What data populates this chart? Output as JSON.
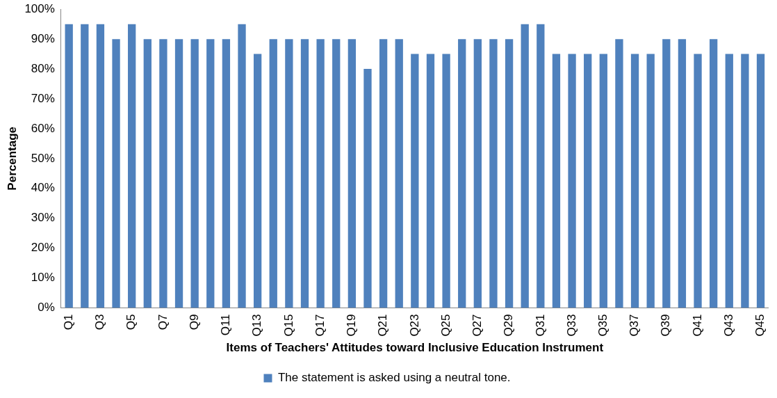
{
  "chart_data": {
    "type": "bar",
    "xlabel": "Items of Teachers' Attitudes toward Inclusive Education Instrument",
    "ylabel": "Percentage",
    "categories": [
      "Q1",
      null,
      "Q3",
      null,
      "Q5",
      null,
      "Q7",
      null,
      "Q9",
      null,
      "Q11",
      null,
      "Q13",
      null,
      "Q15",
      null,
      "Q17",
      null,
      "Q19",
      null,
      "Q21",
      null,
      "Q23",
      null,
      "Q25",
      null,
      "Q27",
      null,
      "Q29",
      null,
      "Q31",
      null,
      "Q33",
      null,
      "Q35",
      null,
      "Q37",
      null,
      "Q39",
      null,
      "Q41",
      null,
      "Q43",
      null,
      "Q45"
    ],
    "series": [
      {
        "name": "The statement is asked using a neutral tone.",
        "color": "#4f81bd",
        "values": [
          95,
          95,
          95,
          90,
          95,
          90,
          90,
          90,
          90,
          90,
          90,
          95,
          85,
          90,
          90,
          90,
          90,
          90,
          90,
          80,
          90,
          90,
          85,
          85,
          85,
          90,
          90,
          90,
          90,
          95,
          95,
          85,
          85,
          85,
          85,
          90,
          85,
          85,
          90,
          90,
          85,
          90,
          85,
          85,
          85
        ]
      }
    ],
    "ylim": [
      0,
      100
    ],
    "yticks": [
      {
        "value": 0,
        "label": "0%"
      },
      {
        "value": 10,
        "label": "10%"
      },
      {
        "value": 20,
        "label": "20%"
      },
      {
        "value": 30,
        "label": "30%"
      },
      {
        "value": 40,
        "label": "40%"
      },
      {
        "value": 50,
        "label": "50%"
      },
      {
        "value": 60,
        "label": "60%"
      },
      {
        "value": 70,
        "label": "70%"
      },
      {
        "value": 80,
        "label": "80%"
      },
      {
        "value": 90,
        "label": "90%"
      },
      {
        "value": 100,
        "label": "100%"
      }
    ],
    "grid": false,
    "legend": "bottom"
  }
}
